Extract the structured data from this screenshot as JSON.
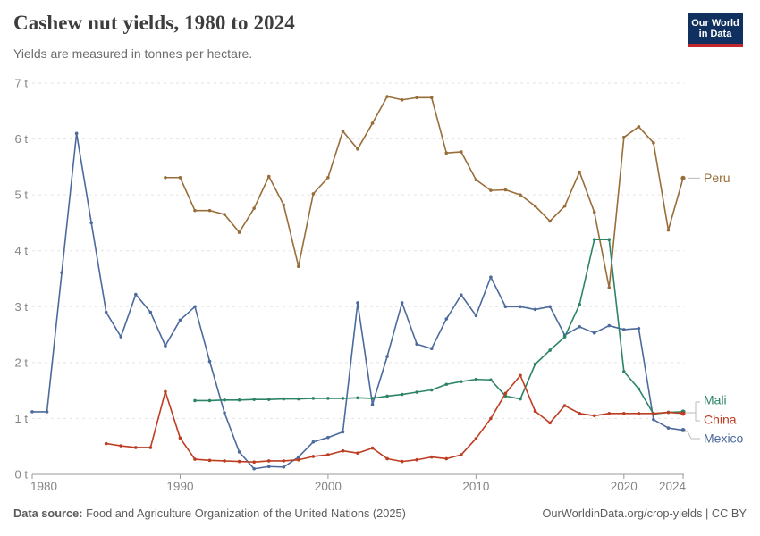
{
  "header": {
    "title": "Cashew nut yields, 1980 to 2024",
    "subtitle": "Yields are measured in tonnes per hectare."
  },
  "logo": {
    "line1": "Our World",
    "line2": "in Data",
    "bg_color": "#10315f",
    "bar_color": "#c0282d"
  },
  "footer": {
    "source_label": "Data source:",
    "source_text": " Food and Agriculture Organization of the United Nations (2025)",
    "right_text": "OurWorldinData.org/crop-yields | CC BY"
  },
  "chart_data": {
    "type": "line",
    "title": "Cashew nut yields, 1980 to 2024",
    "subtitle": "Yields are measured in tonnes per hectare.",
    "unit": "tonnes per hectare",
    "xlim": [
      1980,
      2024
    ],
    "ylim": [
      0,
      7
    ],
    "grid": true,
    "legend_position": "right-of-line-ends",
    "x_ticks": [
      1980,
      1990,
      2000,
      2010,
      2020,
      2024
    ],
    "y_ticks": [
      "0 t",
      "1 t",
      "2 t",
      "3 t",
      "4 t",
      "5 t",
      "6 t",
      "7 t"
    ],
    "colors": {
      "grid": "#e2e2e2",
      "axis": "#9a9a9a",
      "tick_label": "#858585",
      "connector": "#bbbbbb"
    },
    "series": [
      {
        "name": "Mexico",
        "color": "#4c6a9c",
        "start_year": 1980,
        "values": [
          1.12,
          1.12,
          3.61,
          6.1,
          4.5,
          2.9,
          2.46,
          3.22,
          2.9,
          2.3,
          2.76,
          3.0,
          2.02,
          1.1,
          0.4,
          0.1,
          0.14,
          0.13,
          0.31,
          0.58,
          0.66,
          0.76,
          3.07,
          1.25,
          2.11,
          3.07,
          2.33,
          2.25,
          2.78,
          3.21,
          2.84,
          3.53,
          3.0,
          3.0,
          2.95,
          3.0,
          2.49,
          2.64,
          2.53,
          2.66,
          2.59,
          2.61,
          0.98,
          0.83,
          0.79
        ]
      },
      {
        "name": "Peru",
        "color": "#996d39",
        "start_year": 1989,
        "values": [
          5.31,
          5.31,
          4.72,
          4.72,
          4.65,
          4.33,
          4.76,
          5.33,
          4.82,
          3.72,
          5.02,
          5.31,
          6.14,
          5.82,
          6.28,
          6.76,
          6.7,
          6.74,
          6.74,
          5.75,
          5.77,
          5.27,
          5.08,
          5.09,
          5.0,
          4.8,
          4.53,
          4.8,
          5.41,
          4.69,
          3.34,
          6.03,
          6.22,
          5.93,
          4.37,
          5.3
        ]
      },
      {
        "name": "Mali",
        "color": "#2c8465",
        "start_year": 1991,
        "values": [
          1.32,
          1.32,
          1.33,
          1.33,
          1.34,
          1.34,
          1.35,
          1.35,
          1.36,
          1.36,
          1.36,
          1.37,
          1.36,
          1.4,
          1.43,
          1.47,
          1.51,
          1.61,
          1.66,
          1.7,
          1.69,
          1.4,
          1.35,
          1.97,
          2.22,
          2.46,
          3.04,
          4.2,
          4.2,
          1.84,
          1.53,
          1.08,
          1.11,
          1.12
        ]
      },
      {
        "name": "China",
        "color": "#bc3d22",
        "start_year": 1985,
        "values": [
          0.55,
          0.51,
          0.48,
          0.48,
          1.48,
          0.65,
          0.27,
          0.25,
          0.24,
          0.23,
          0.22,
          0.24,
          0.24,
          0.26,
          0.32,
          0.35,
          0.42,
          0.38,
          0.47,
          0.28,
          0.23,
          0.26,
          0.31,
          0.28,
          0.35,
          0.64,
          1.0,
          1.45,
          1.77,
          1.13,
          0.92,
          1.23,
          1.09,
          1.05,
          1.09,
          1.09,
          1.09,
          1.09,
          1.11,
          1.09
        ]
      }
    ]
  }
}
